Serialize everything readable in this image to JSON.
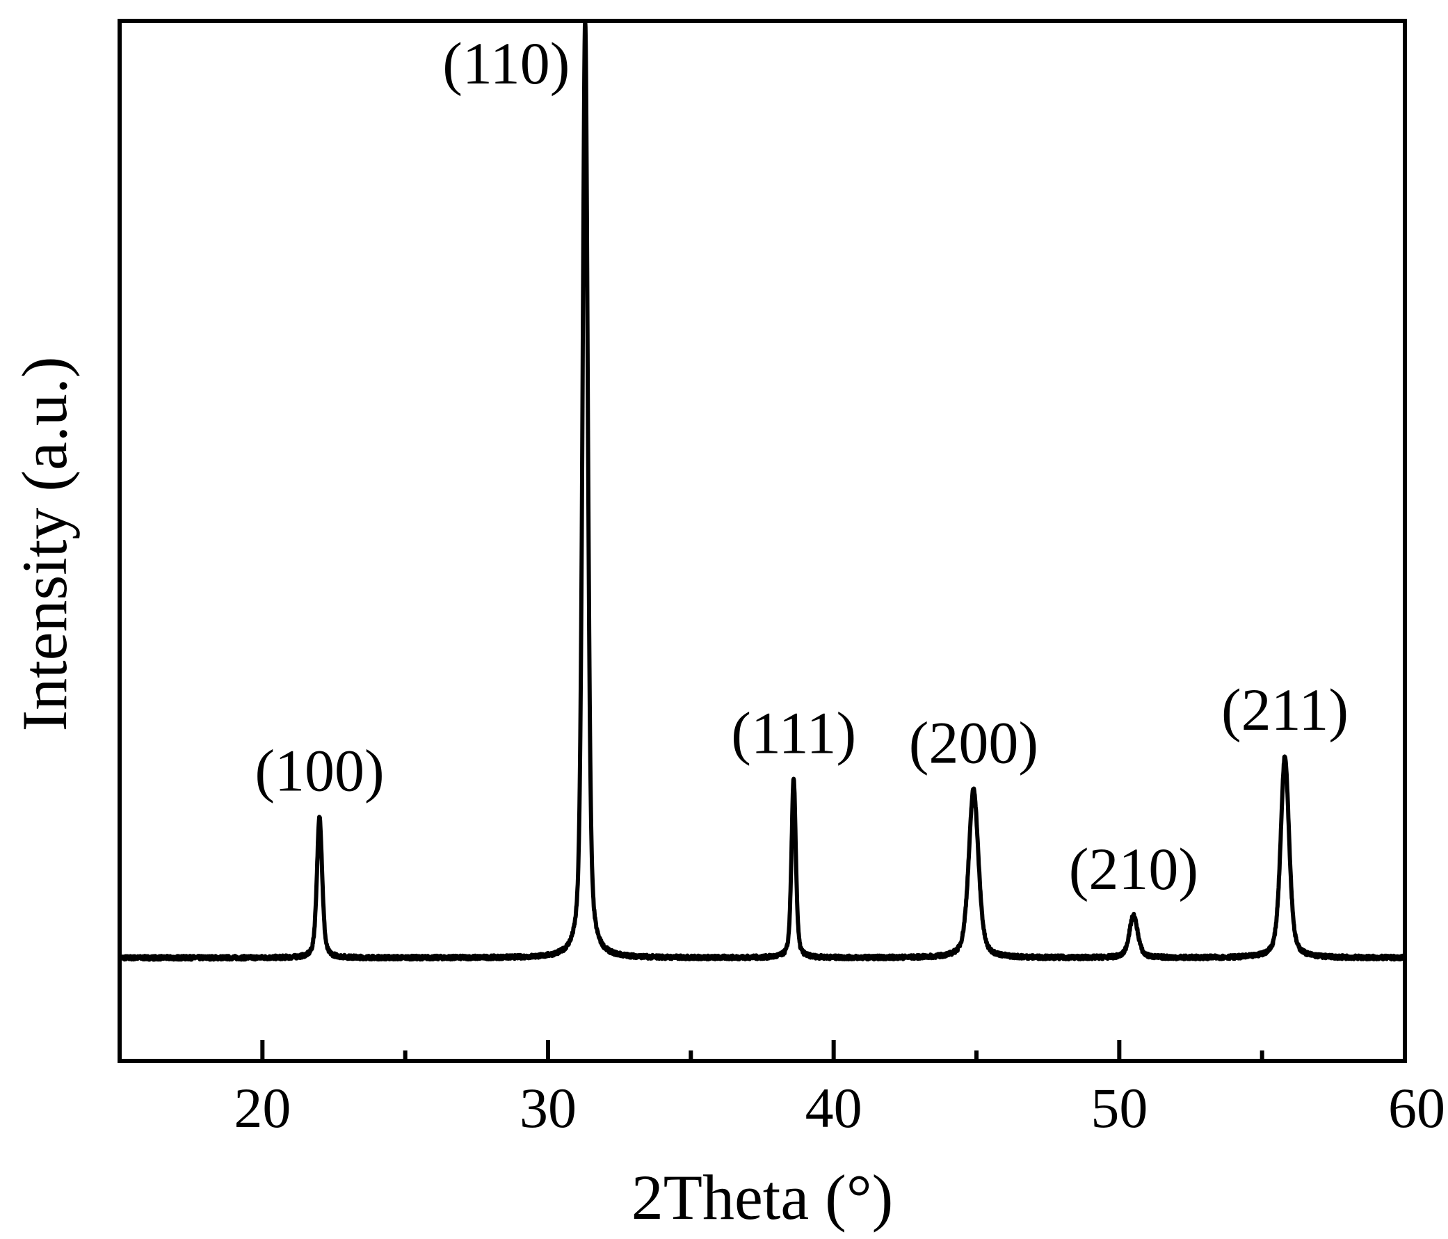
{
  "chart_data": {
    "type": "line",
    "title": "",
    "xlabel": "2Theta (°)",
    "ylabel": "Intensity (a.u.)",
    "xlim": [
      15,
      60
    ],
    "ylim": [
      -110,
      1000
    ],
    "x_ticks": [
      20,
      30,
      40,
      50,
      60
    ],
    "x_tick_labels": [
      "20",
      "30",
      "40",
      "50",
      "60"
    ],
    "x_minor_ticks": [
      25,
      35,
      45,
      55
    ],
    "y_ticks_shown": false,
    "grid": false,
    "legend": "none",
    "line_color": "#000000",
    "baseline_intensity": 0,
    "peaks": [
      {
        "label": "(100)",
        "x": 22.0,
        "intensity": 150,
        "fwhm": 0.22
      },
      {
        "label": "(110)",
        "x": 31.3,
        "intensity": 1000,
        "fwhm": 0.22
      },
      {
        "label": "(111)",
        "x": 38.6,
        "intensity": 190,
        "fwhm": 0.18
      },
      {
        "label": "(200)",
        "x": 44.9,
        "intensity": 180,
        "fwhm": 0.4
      },
      {
        "label": "(210)",
        "x": 50.5,
        "intensity": 45,
        "fwhm": 0.35
      },
      {
        "label": "(211)",
        "x": 55.8,
        "intensity": 215,
        "fwhm": 0.35
      }
    ]
  }
}
